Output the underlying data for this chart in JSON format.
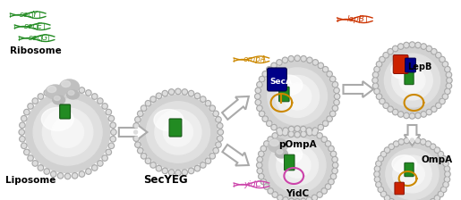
{
  "fig_width": 5.15,
  "fig_height": 2.24,
  "dpi": 100,
  "background_color": "#ffffff",
  "labels": {
    "ribosome": "Ribosome",
    "liposome": "Liposome",
    "secYEG": "SecYEG",
    "secY": "secY",
    "secE": "secE",
    "secG": "secG",
    "ompA": "ompA",
    "pOmpA": "pOmpA",
    "secA": "SecA",
    "lepB_gene": "lepB",
    "lepB_prot": "LepB",
    "yidC_gene": "yidC",
    "yidC_prot": "YidC",
    "ompA_prot": "OmpA"
  },
  "colors": {
    "liposome_grad_outer": "#d0d0d0",
    "liposome_grad_inner": "#f8f8f8",
    "liposome_highlight": "#ffffff",
    "secY_color": "#228B22",
    "secE_color": "#228B22",
    "secG_color": "#228B22",
    "gene_secYEG": "#228B22",
    "gene_ompA": "#cc8800",
    "gene_lepB": "#cc3300",
    "gene_yidC": "#cc44aa",
    "secA_color": "#000088",
    "lepB_color": "#cc2200",
    "ompA_loop_color": "#cc8800",
    "yidC_loop_color": "#cc44aa",
    "secYEG_label": "#000000",
    "ribosome_color": "#bbbbbb",
    "arrow_color": "#aaaaaa",
    "text_color": "#000000",
    "green_protein": "#228B22",
    "red_protein": "#cc2200",
    "blue_protein": "#000088"
  }
}
